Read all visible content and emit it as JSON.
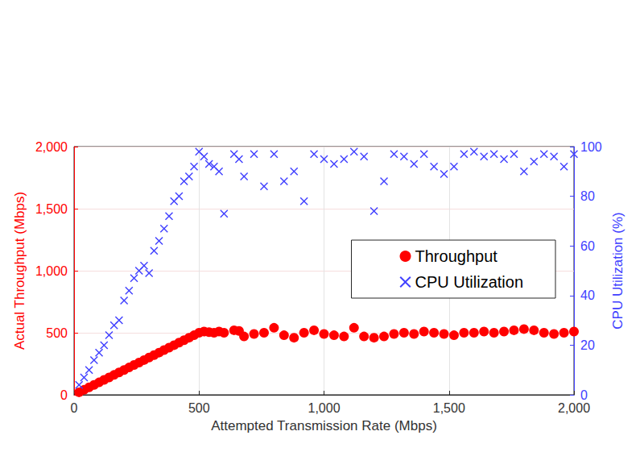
{
  "chart_data": {
    "type": "scatter",
    "xlabel": "Attempted Transmission Rate (Mbps)",
    "ylabel": "Actual Throughput (Mbps)",
    "y2label": "CPU Utilization (%)",
    "x": [
      20,
      40,
      60,
      80,
      100,
      120,
      140,
      160,
      180,
      200,
      220,
      240,
      260,
      280,
      300,
      320,
      340,
      360,
      380,
      400,
      420,
      440,
      460,
      480,
      500,
      520,
      540,
      560,
      580,
      600,
      640,
      660,
      680,
      720,
      760,
      800,
      840,
      880,
      920,
      960,
      1000,
      1040,
      1080,
      1120,
      1160,
      1200,
      1240,
      1280,
      1320,
      1360,
      1400,
      1440,
      1480,
      1520,
      1560,
      1600,
      1640,
      1680,
      1720,
      1760,
      1800,
      1840,
      1880,
      1920,
      1960,
      2000
    ],
    "series": [
      {
        "name": "Throughput",
        "color": "#ff0000",
        "marker": "circle",
        "values": [
          20,
          40,
          60,
          80,
          100,
          120,
          140,
          160,
          180,
          200,
          220,
          240,
          260,
          280,
          300,
          320,
          340,
          360,
          380,
          400,
          420,
          440,
          460,
          480,
          500,
          510,
          505,
          500,
          510,
          500,
          520,
          515,
          470,
          490,
          500,
          540,
          480,
          460,
          500,
          520,
          490,
          480,
          470,
          540,
          470,
          460,
          470,
          490,
          500,
          490,
          510,
          500,
          490,
          480,
          500,
          500,
          510,
          500,
          510,
          520,
          530,
          520,
          500,
          490,
          500,
          510
        ]
      },
      {
        "name": "CPU Utilization",
        "color": "#4040ff",
        "marker": "x",
        "axis": "y2",
        "values": [
          4,
          7,
          10,
          14,
          17,
          20,
          24,
          28,
          30,
          38,
          42,
          47,
          50,
          52,
          49,
          58,
          62,
          67,
          72,
          78,
          80,
          86,
          88,
          92,
          98,
          96,
          93,
          92,
          90,
          73,
          97,
          95,
          88,
          97,
          84,
          97,
          86,
          90,
          78,
          97,
          95,
          93,
          95,
          98,
          96,
          74,
          86,
          97,
          96,
          93,
          97,
          92,
          89,
          92,
          97,
          98,
          96,
          97,
          95,
          97,
          90,
          94,
          97,
          96,
          92,
          97
        ]
      }
    ],
    "xlim": [
      0,
      2000
    ],
    "xticks": [
      0,
      500,
      1000,
      1500,
      2000
    ],
    "ylim": [
      0,
      2000
    ],
    "yticks": [
      0,
      500,
      1000,
      1500,
      2000
    ],
    "y2lim": [
      0,
      100
    ],
    "y2ticks": [
      0,
      20,
      40,
      60,
      80,
      100
    ],
    "grid": true,
    "legend": "right"
  }
}
